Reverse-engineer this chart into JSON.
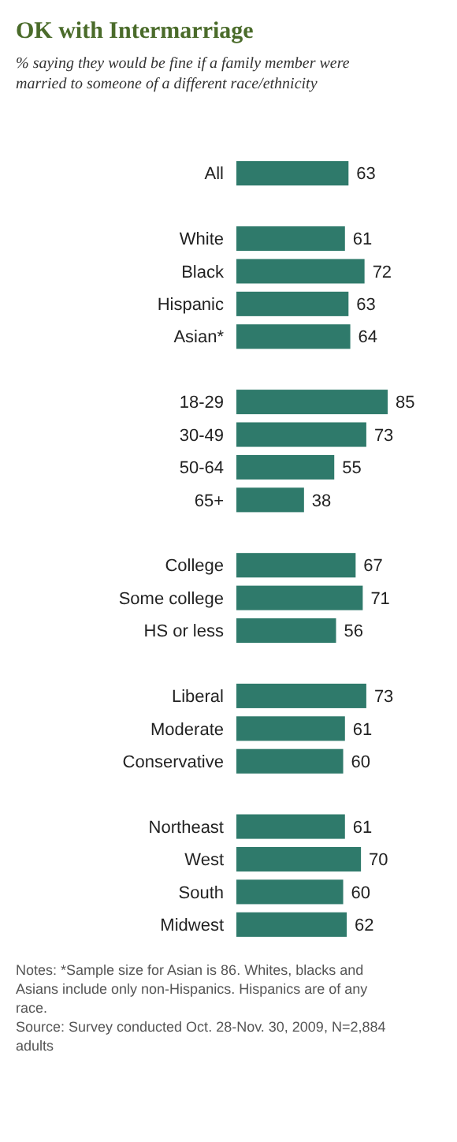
{
  "chart_data": {
    "type": "bar",
    "orientation": "horizontal",
    "title": "OK with Intermarriage",
    "subtitle": "% saying they would be fine if a family member were married to someone of a different race/ethnicity",
    "categories": [
      "All",
      null,
      "White",
      "Black",
      "Hispanic",
      "Asian*",
      null,
      "18-29",
      "30-49",
      "50-64",
      "65+",
      null,
      "College",
      "Some college",
      "HS or less",
      null,
      "Liberal",
      "Moderate",
      "Conservative",
      null,
      "Northeast",
      "West",
      "South",
      "Midwest"
    ],
    "values": [
      63,
      null,
      61,
      72,
      63,
      64,
      null,
      85,
      73,
      55,
      38,
      null,
      67,
      71,
      56,
      null,
      73,
      61,
      60,
      null,
      61,
      70,
      60,
      62
    ],
    "color": "#2f7a6b",
    "data_labels": true,
    "tick_labels": "y",
    "annotations": [
      "Notes: *Sample size for Asian is 86. Whites, blacks and Asians include only non-Hispanics. Hispanics are of any race.",
      "Source: Survey conducted Oct. 28-Nov. 30, 2009, N=2,884 adults"
    ]
  }
}
